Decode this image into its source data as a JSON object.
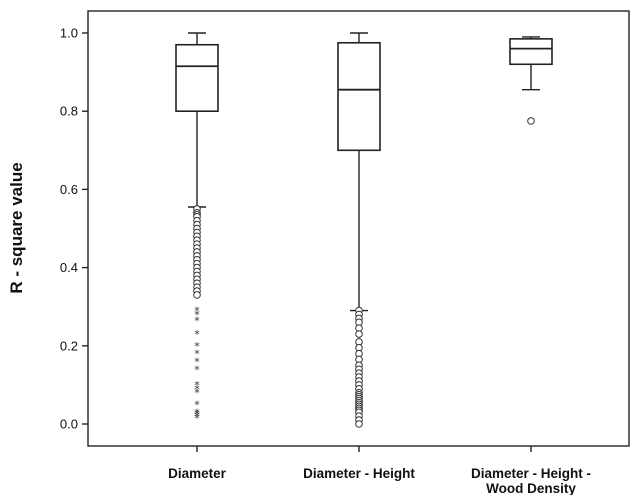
{
  "chart_data": {
    "type": "boxplot",
    "ylabel": "R - square value",
    "ylim": [
      -0.03,
      1.06
    ],
    "yticks": [
      "0.0",
      "0.2",
      "0.4",
      "0.6",
      "0.8",
      "1.0"
    ],
    "categories": [
      {
        "line1": "Diameter",
        "line2": ""
      },
      {
        "line1": "Diameter - Height",
        "line2": ""
      },
      {
        "line1": "Diameter - Height -",
        "line2": "Wood Density"
      }
    ],
    "boxes": [
      {
        "min": 0.555,
        "q1": 0.8,
        "median": 0.915,
        "q3": 0.97,
        "max": 1.0,
        "outlier_circles": [
          0.55,
          0.54,
          0.535,
          0.53,
          0.52,
          0.51,
          0.5,
          0.49,
          0.48,
          0.47,
          0.46,
          0.45,
          0.44,
          0.43,
          0.42,
          0.41,
          0.4,
          0.39,
          0.38,
          0.37,
          0.36,
          0.35,
          0.34,
          0.33
        ],
        "outlier_stars": [
          0.29,
          0.28,
          0.265,
          0.23,
          0.2,
          0.18,
          0.16,
          0.14,
          0.1,
          0.09,
          0.08,
          0.05,
          0.03,
          0.025,
          0.02,
          0.015
        ]
      },
      {
        "min": 0.29,
        "q1": 0.7,
        "median": 0.855,
        "q3": 0.975,
        "max": 1.0,
        "outlier_circles": [
          0.29,
          0.28,
          0.27,
          0.26,
          0.245,
          0.23,
          0.21,
          0.195,
          0.18,
          0.165,
          0.15,
          0.14,
          0.13,
          0.12,
          0.11,
          0.1,
          0.09,
          0.08,
          0.075,
          0.07,
          0.065,
          0.06,
          0.055,
          0.05,
          0.045,
          0.04,
          0.035,
          0.03,
          0.02,
          0.01,
          0.0
        ],
        "outlier_stars": []
      },
      {
        "min": 0.855,
        "q1": 0.92,
        "median": 0.96,
        "q3": 0.985,
        "max": 0.99,
        "outlier_circles": [
          0.775
        ],
        "outlier_stars": []
      }
    ]
  }
}
